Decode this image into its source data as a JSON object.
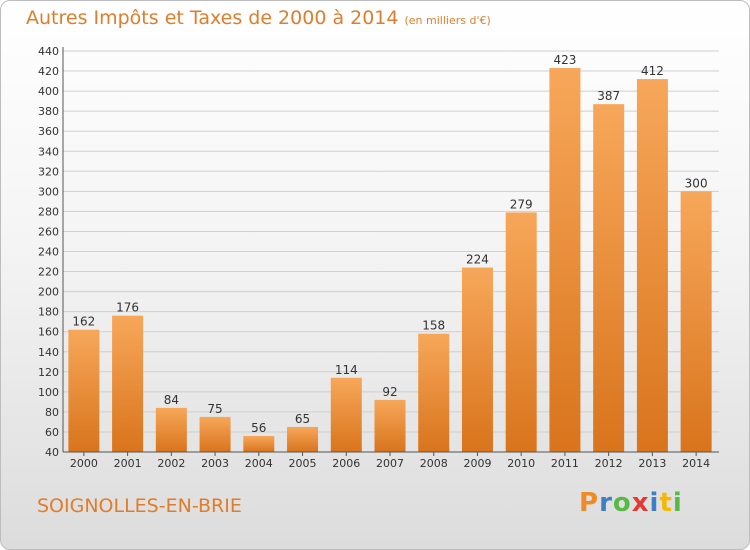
{
  "header": {
    "title": "Autres Impôts et Taxes de 2000 à 2014",
    "subtitle": "(en milliers d'€)"
  },
  "footer": {
    "city": "SOIGNOLLES-EN-BRIE",
    "logo_text": "Proxiti",
    "logo_colors": [
      "#f08a24",
      "#3b7fc4",
      "#58b947",
      "#e53935",
      "#3b7fc4",
      "#f5b800",
      "#58b947"
    ]
  },
  "chart_data": {
    "type": "bar",
    "title": "Autres Impôts et Taxes de 2000 à 2014",
    "subtitle": "(en milliers d'€)",
    "xlabel": "",
    "ylabel": "",
    "categories": [
      "2000",
      "2001",
      "2002",
      "2003",
      "2004",
      "2005",
      "2006",
      "2007",
      "2008",
      "2009",
      "2010",
      "2011",
      "2012",
      "2013",
      "2014"
    ],
    "values": [
      162,
      176,
      84,
      75,
      56,
      65,
      114,
      92,
      158,
      224,
      279,
      423,
      387,
      412,
      300
    ],
    "ylim": [
      40,
      440
    ],
    "yticks": [
      40,
      60,
      80,
      100,
      120,
      140,
      160,
      180,
      200,
      220,
      240,
      260,
      280,
      300,
      320,
      340,
      360,
      380,
      400,
      420,
      440
    ],
    "grid": true,
    "bar_color_top": "#f7a75a",
    "bar_color_bottom": "#d9741c"
  }
}
